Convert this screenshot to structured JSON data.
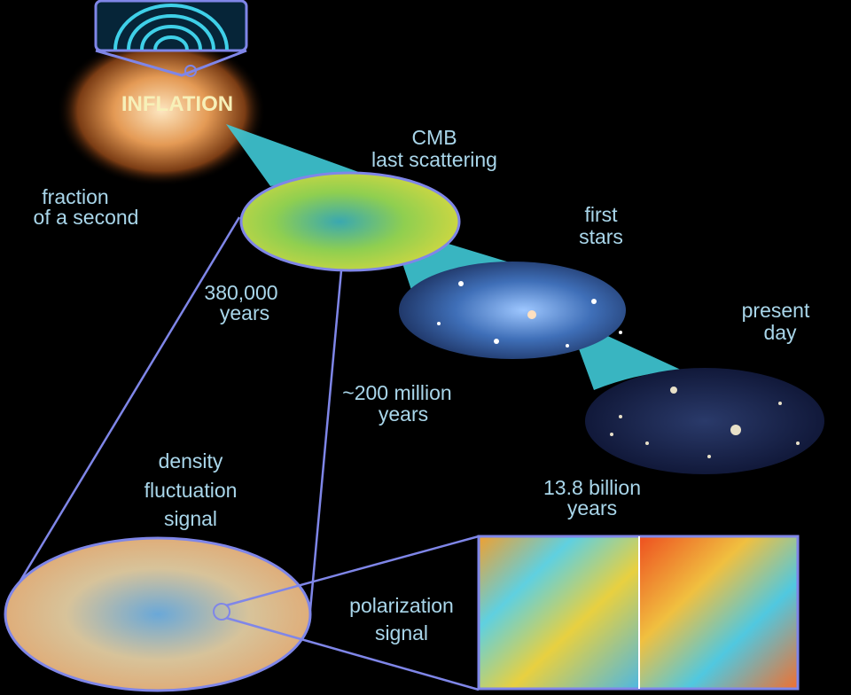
{
  "colors": {
    "background": "#000000",
    "label": "#a9d6ea",
    "outline": "#7f86e8",
    "cone": "#3fc9d6"
  },
  "epochs": {
    "inflation": {
      "title": "INFLATION",
      "time": [
        "fraction",
        "of a second"
      ]
    },
    "cmb": {
      "title": [
        "CMB",
        "last scattering"
      ],
      "time": [
        "380,000",
        "years"
      ]
    },
    "first_stars": {
      "title": [
        "first",
        "stars"
      ],
      "time": [
        "~200 million",
        "years"
      ]
    },
    "present_day": {
      "title": [
        "present",
        "day"
      ],
      "time": [
        "13.8 billion",
        "years"
      ]
    }
  },
  "density_signal": [
    "density",
    "fluctuation",
    "signal"
  ],
  "polarization_signal": [
    "polarization",
    "signal"
  ]
}
